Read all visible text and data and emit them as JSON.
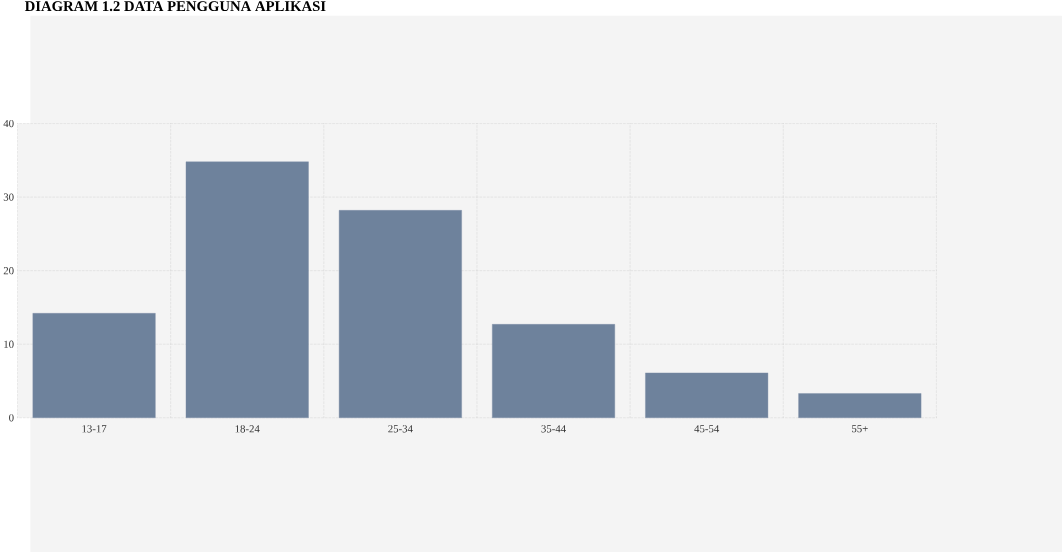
{
  "chart_data": {
    "type": "bar",
    "title": "DIAGRAM 1.2 DATA PENGGUNA APLIKASI",
    "categories": [
      "13-17",
      "18-24",
      "25-34",
      "35-44",
      "45-54",
      "55+"
    ],
    "values": [
      14.2,
      34.8,
      28.2,
      12.7,
      6.1,
      3.3
    ],
    "color": "#6e829c",
    "ylim": [
      0,
      40
    ],
    "yticks": [
      0,
      10,
      20,
      30,
      40
    ],
    "grid": true
  }
}
